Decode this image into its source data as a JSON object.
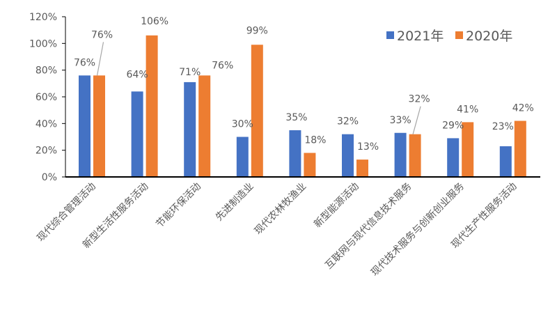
{
  "chart_data": {
    "type": "bar",
    "title": "",
    "xlabel": "",
    "ylabel": "",
    "ylim": [
      0,
      120
    ],
    "yticks": [
      "0%",
      "20%",
      "40%",
      "60%",
      "80%",
      "100%",
      "120%"
    ],
    "grid": false,
    "legend_position": "top-right",
    "categories": [
      "现代综合管理活动",
      "新型生活性服务活动",
      "节能环保活动",
      "先进制造业",
      "现代农林牧渔业",
      "新型能源活动",
      "互联网与现代信息技术服务",
      "现代技术服务与创新创业服务",
      "现代生产性服务活动"
    ],
    "series": [
      {
        "name": "2021年",
        "color": "#4472C4",
        "values": [
          76,
          64,
          71,
          30,
          35,
          32,
          33,
          29,
          23
        ],
        "labels": [
          "76%",
          "64%",
          "71%",
          "30%",
          "35%",
          "32%",
          "33%",
          "29%",
          "23%"
        ]
      },
      {
        "name": "2020年",
        "color": "#ED7D31",
        "values": [
          76,
          106,
          76,
          99,
          18,
          13,
          32,
          41,
          42
        ],
        "labels": [
          "76%",
          "106%",
          "76%",
          "99%",
          "18%",
          "13%",
          "32%",
          "41%",
          "42%"
        ]
      }
    ]
  },
  "legend": {
    "items": [
      {
        "label": "2021年",
        "color": "#4472C4"
      },
      {
        "label": "2020年",
        "color": "#ED7D31"
      }
    ]
  }
}
